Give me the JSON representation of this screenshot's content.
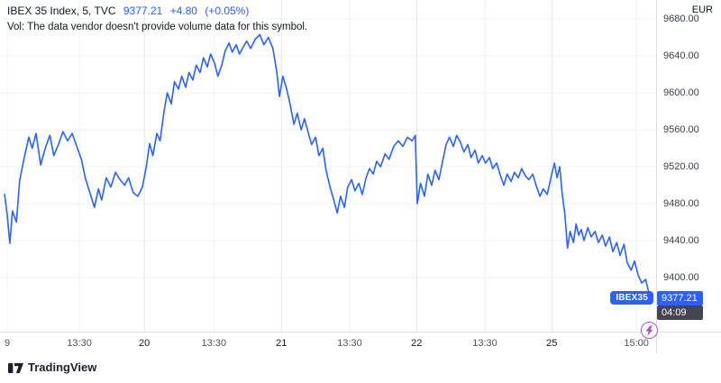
{
  "header": {
    "symbol_title": "IBEX 35 Index, 5, TVC",
    "price": "9377.21",
    "change": "+4.80",
    "change_pct": "(+0.05%)",
    "vol_note": "Vol: The data vendor doesn't provide volume data for this symbol."
  },
  "price_axis": {
    "currency": "EUR",
    "labels": [
      {
        "price": 9680,
        "label": "9680.00"
      },
      {
        "price": 9640,
        "label": "9640.00"
      },
      {
        "price": 9600,
        "label": "9600.00"
      },
      {
        "price": 9560,
        "label": "9560.00"
      },
      {
        "price": 9520,
        "label": "9520.00"
      },
      {
        "price": 9480,
        "label": "9480.00"
      },
      {
        "price": 9440,
        "label": "9440.00"
      },
      {
        "price": 9400,
        "label": "9400.00"
      }
    ],
    "last_price_label": "9377.21",
    "countdown": "04:09"
  },
  "footer": {
    "brand": "TradingView"
  },
  "colors": {
    "accent": "#2962FF",
    "grid": "#f0f3fa",
    "grid_major": "#e3e6ec",
    "countdown_bg": "#434651",
    "bolt_purple": "#b04fd0",
    "text": "#131722",
    "axis_text": "#3c404b"
  },
  "chart_data": {
    "type": "line",
    "title": "IBEX 35 Index",
    "interval": "5",
    "exchange": "TVC",
    "currency": "EUR",
    "last_price": 9377.21,
    "change": 4.8,
    "change_pct": 0.05,
    "ylim": [
      9360,
      9700
    ],
    "grid_prices": [
      9400,
      9440,
      9480,
      9520,
      9560,
      9600,
      9640,
      9680
    ],
    "x_ticks": [
      {
        "label": "9",
        "x": 0.011,
        "day_boundary": false
      },
      {
        "label": "13:30",
        "x": 0.121,
        "day_boundary": false
      },
      {
        "label": "20",
        "x": 0.22,
        "day_boundary": true
      },
      {
        "label": "13:30",
        "x": 0.326,
        "day_boundary": false
      },
      {
        "label": "21",
        "x": 0.429,
        "day_boundary": true
      },
      {
        "label": "13:30",
        "x": 0.533,
        "day_boundary": false
      },
      {
        "label": "22",
        "x": 0.635,
        "day_boundary": true
      },
      {
        "label": "13:30",
        "x": 0.739,
        "day_boundary": false
      },
      {
        "label": "25",
        "x": 0.841,
        "day_boundary": true
      },
      {
        "label": "15:00",
        "x": 0.97,
        "day_boundary": false
      }
    ],
    "series": [
      {
        "name": "IBEX35",
        "points": [
          [
            0.007,
            9490
          ],
          [
            0.011,
            9468
          ],
          [
            0.015,
            9437
          ],
          [
            0.019,
            9472
          ],
          [
            0.025,
            9460
          ],
          [
            0.03,
            9505
          ],
          [
            0.037,
            9530
          ],
          [
            0.044,
            9552
          ],
          [
            0.049,
            9540
          ],
          [
            0.055,
            9556
          ],
          [
            0.062,
            9522
          ],
          [
            0.069,
            9540
          ],
          [
            0.076,
            9554
          ],
          [
            0.082,
            9532
          ],
          [
            0.089,
            9544
          ],
          [
            0.096,
            9558
          ],
          [
            0.103,
            9548
          ],
          [
            0.11,
            9556
          ],
          [
            0.117,
            9542
          ],
          [
            0.124,
            9528
          ],
          [
            0.13,
            9508
          ],
          [
            0.137,
            9492
          ],
          [
            0.144,
            9476
          ],
          [
            0.15,
            9496
          ],
          [
            0.155,
            9484
          ],
          [
            0.162,
            9508
          ],
          [
            0.169,
            9498
          ],
          [
            0.176,
            9514
          ],
          [
            0.183,
            9506
          ],
          [
            0.19,
            9500
          ],
          [
            0.196,
            9508
          ],
          [
            0.203,
            9492
          ],
          [
            0.21,
            9488
          ],
          [
            0.217,
            9498
          ],
          [
            0.223,
            9520
          ],
          [
            0.228,
            9545
          ],
          [
            0.233,
            9532
          ],
          [
            0.239,
            9556
          ],
          [
            0.244,
            9548
          ],
          [
            0.25,
            9580
          ],
          [
            0.255,
            9600
          ],
          [
            0.261,
            9588
          ],
          [
            0.266,
            9612
          ],
          [
            0.272,
            9604
          ],
          [
            0.277,
            9618
          ],
          [
            0.283,
            9606
          ],
          [
            0.288,
            9622
          ],
          [
            0.294,
            9614
          ],
          [
            0.299,
            9630
          ],
          [
            0.305,
            9622
          ],
          [
            0.31,
            9638
          ],
          [
            0.316,
            9628
          ],
          [
            0.321,
            9642
          ],
          [
            0.327,
            9632
          ],
          [
            0.332,
            9618
          ],
          [
            0.338,
            9630
          ],
          [
            0.343,
            9645
          ],
          [
            0.349,
            9654
          ],
          [
            0.354,
            9644
          ],
          [
            0.36,
            9652
          ],
          [
            0.365,
            9642
          ],
          [
            0.371,
            9650
          ],
          [
            0.376,
            9656
          ],
          [
            0.382,
            9648
          ],
          [
            0.389,
            9658
          ],
          [
            0.396,
            9663
          ],
          [
            0.402,
            9652
          ],
          [
            0.409,
            9660
          ],
          [
            0.416,
            9648
          ],
          [
            0.422,
            9622
          ],
          [
            0.426,
            9596
          ],
          [
            0.431,
            9618
          ],
          [
            0.437,
            9604
          ],
          [
            0.442,
            9588
          ],
          [
            0.448,
            9566
          ],
          [
            0.453,
            9578
          ],
          [
            0.459,
            9560
          ],
          [
            0.464,
            9572
          ],
          [
            0.47,
            9556
          ],
          [
            0.475,
            9544
          ],
          [
            0.481,
            9552
          ],
          [
            0.486,
            9532
          ],
          [
            0.492,
            9540
          ],
          [
            0.497,
            9516
          ],
          [
            0.503,
            9498
          ],
          [
            0.508,
            9486
          ],
          [
            0.514,
            9470
          ],
          [
            0.519,
            9488
          ],
          [
            0.525,
            9476
          ],
          [
            0.53,
            9498
          ],
          [
            0.536,
            9506
          ],
          [
            0.541,
            9494
          ],
          [
            0.547,
            9502
          ],
          [
            0.552,
            9490
          ],
          [
            0.558,
            9508
          ],
          [
            0.563,
            9518
          ],
          [
            0.569,
            9512
          ],
          [
            0.574,
            9526
          ],
          [
            0.58,
            9520
          ],
          [
            0.587,
            9534
          ],
          [
            0.593,
            9528
          ],
          [
            0.6,
            9542
          ],
          [
            0.607,
            9548
          ],
          [
            0.614,
            9542
          ],
          [
            0.621,
            9552
          ],
          [
            0.628,
            9548
          ],
          [
            0.633,
            9554
          ],
          [
            0.636,
            9480
          ],
          [
            0.641,
            9502
          ],
          [
            0.647,
            9488
          ],
          [
            0.652,
            9512
          ],
          [
            0.658,
            9500
          ],
          [
            0.663,
            9516
          ],
          [
            0.669,
            9506
          ],
          [
            0.674,
            9524
          ],
          [
            0.68,
            9544
          ],
          [
            0.685,
            9552
          ],
          [
            0.691,
            9542
          ],
          [
            0.696,
            9554
          ],
          [
            0.702,
            9546
          ],
          [
            0.707,
            9536
          ],
          [
            0.713,
            9544
          ],
          [
            0.718,
            9530
          ],
          [
            0.724,
            9538
          ],
          [
            0.729,
            9524
          ],
          [
            0.735,
            9532
          ],
          [
            0.74,
            9524
          ],
          [
            0.746,
            9530
          ],
          [
            0.751,
            9518
          ],
          [
            0.757,
            9524
          ],
          [
            0.762,
            9512
          ],
          [
            0.768,
            9500
          ],
          [
            0.773,
            9512
          ],
          [
            0.779,
            9504
          ],
          [
            0.784,
            9514
          ],
          [
            0.79,
            9508
          ],
          [
            0.795,
            9518
          ],
          [
            0.801,
            9510
          ],
          [
            0.806,
            9506
          ],
          [
            0.812,
            9512
          ],
          [
            0.817,
            9500
          ],
          [
            0.823,
            9488
          ],
          [
            0.828,
            9496
          ],
          [
            0.834,
            9490
          ],
          [
            0.841,
            9512
          ],
          [
            0.845,
            9524
          ],
          [
            0.849,
            9508
          ],
          [
            0.853,
            9520
          ],
          [
            0.857,
            9490
          ],
          [
            0.861,
            9468
          ],
          [
            0.865,
            9432
          ],
          [
            0.869,
            9450
          ],
          [
            0.874,
            9438
          ],
          [
            0.878,
            9458
          ],
          [
            0.882,
            9446
          ],
          [
            0.886,
            9452
          ],
          [
            0.89,
            9440
          ],
          [
            0.896,
            9454
          ],
          [
            0.901,
            9444
          ],
          [
            0.907,
            9450
          ],
          [
            0.912,
            9438
          ],
          [
            0.918,
            9446
          ],
          [
            0.923,
            9434
          ],
          [
            0.929,
            9444
          ],
          [
            0.934,
            9428
          ],
          [
            0.94,
            9438
          ],
          [
            0.945,
            9424
          ],
          [
            0.951,
            9436
          ],
          [
            0.956,
            9416
          ],
          [
            0.962,
            9408
          ],
          [
            0.967,
            9418
          ],
          [
            0.973,
            9402
          ],
          [
            0.978,
            9394
          ],
          [
            0.984,
            9398
          ],
          [
            0.988,
            9386
          ],
          [
            0.992,
            9377.2
          ]
        ]
      }
    ]
  }
}
